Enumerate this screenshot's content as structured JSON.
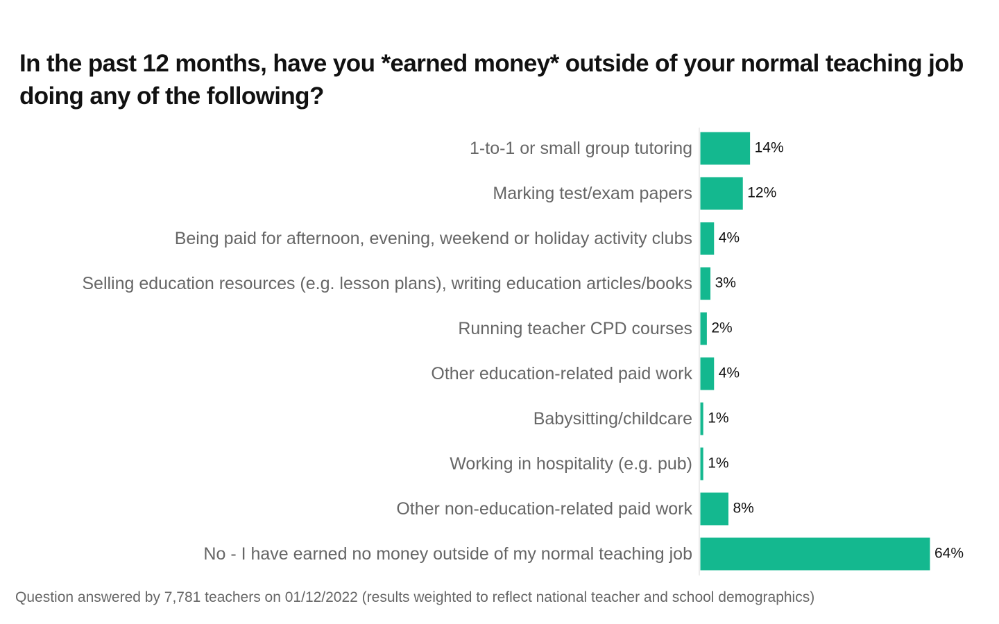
{
  "chart_data": {
    "type": "bar",
    "orientation": "horizontal",
    "title": "In the past 12 months, have you *earned money* outside of your normal teaching job doing any of the following?",
    "categories": [
      "1-to-1 or small group tutoring",
      "Marking test/exam papers",
      "Being paid for afternoon, evening, weekend or holiday activity clubs",
      "Selling education resources (e.g. lesson plans), writing education articles/books",
      "Running teacher CPD courses",
      "Other education-related paid work",
      "Babysitting/childcare",
      "Working in hospitality (e.g. pub)",
      "Other non-education-related paid work",
      "No - I have earned no money outside of my normal teaching job"
    ],
    "values": [
      14,
      12,
      4,
      3,
      2,
      4,
      1,
      1,
      8,
      64
    ],
    "value_labels": [
      "14%",
      "12%",
      "4%",
      "3%",
      "2%",
      "4%",
      "1%",
      "1%",
      "8%",
      "64%"
    ],
    "unit": "%",
    "xlim": [
      0,
      64
    ],
    "grid": false,
    "bar_color": "#14b88f",
    "note": "Question answered by 7,781 teachers on 01/12/2022 (results weighted to reflect national teacher and school demographics)"
  }
}
